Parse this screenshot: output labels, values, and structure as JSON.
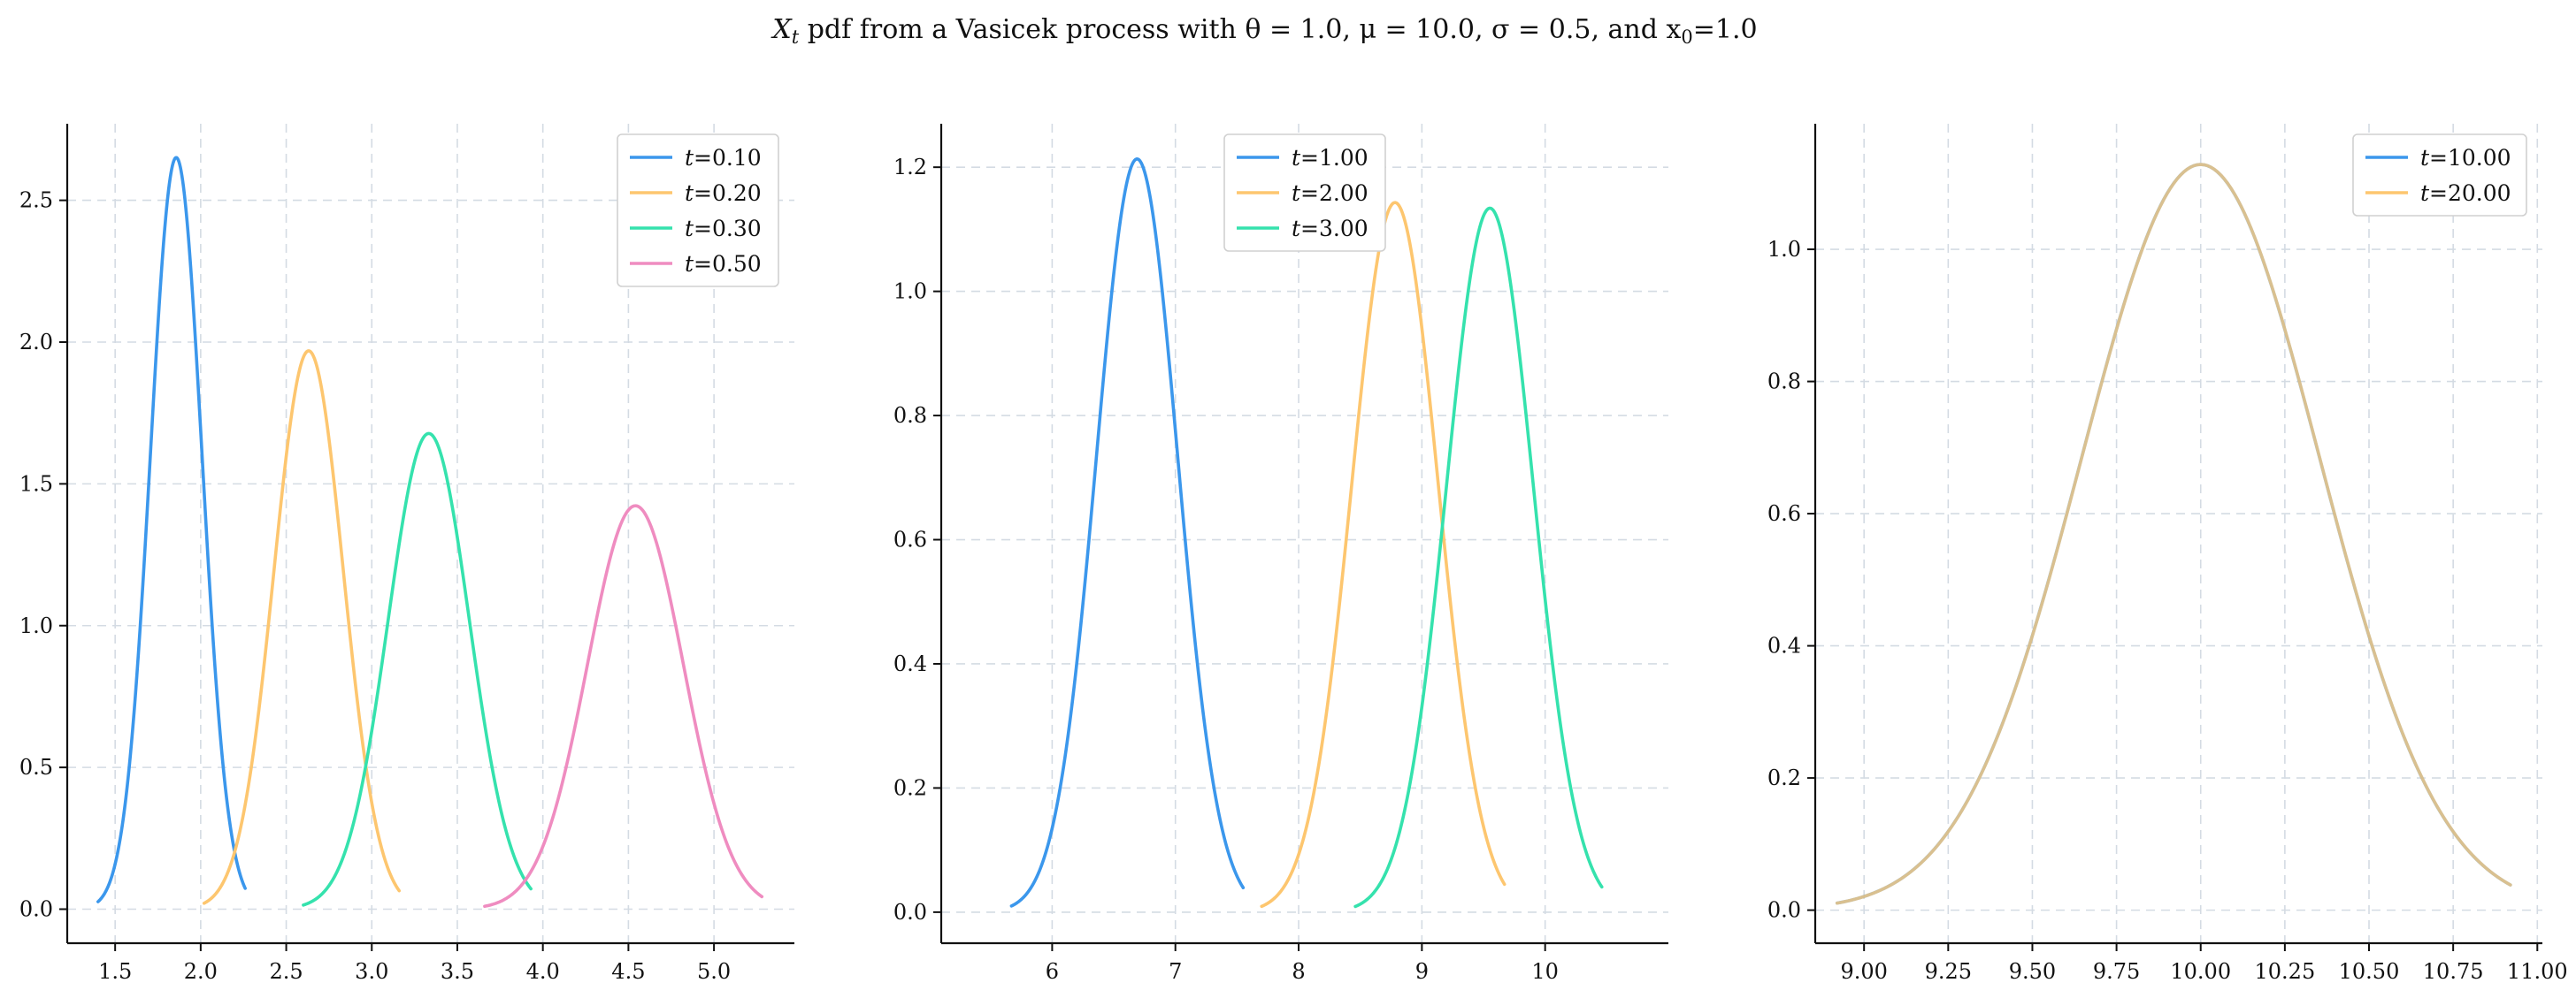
{
  "figure": {
    "title_parts": [
      "X",
      "t",
      " pdf from a Vasicek process with θ = 1.0, μ = 10.0, σ = 0.5, and x",
      "0",
      "=1.0"
    ]
  },
  "chart_data": [
    {
      "type": "line",
      "xlim": [
        1.22,
        5.47
      ],
      "ylim": [
        -0.12,
        2.77
      ],
      "xticks": [
        1.5,
        2.0,
        2.5,
        3.0,
        3.5,
        4.0,
        4.5,
        5.0
      ],
      "xtick_labels": [
        "1.5",
        "2.0",
        "2.5",
        "3.0",
        "3.5",
        "4.0",
        "4.5",
        "5.0"
      ],
      "yticks": [
        0.0,
        0.5,
        1.0,
        1.5,
        2.0,
        2.5
      ],
      "ytick_labels": [
        "0.0",
        "0.5",
        "1.0",
        "1.5",
        "2.0",
        "2.5"
      ],
      "grid": true,
      "legend_position": "top-right",
      "series": [
        {
          "label": "=0.10",
          "color": "#3b97ec",
          "mean": 1.857,
          "sd": 0.1505,
          "x_range": [
            1.4,
            2.26
          ]
        },
        {
          "label": "=0.20",
          "color": "#fdc66f",
          "mean": 2.631,
          "sd": 0.2026,
          "x_range": [
            2.02,
            3.16
          ]
        },
        {
          "label": "=0.30",
          "color": "#35e2ad",
          "mean": 3.333,
          "sd": 0.2378,
          "x_range": [
            2.6,
            3.93
          ]
        },
        {
          "label": "=0.50",
          "color": "#ef8cc0",
          "mean": 4.541,
          "sd": 0.2804,
          "x_range": [
            3.66,
            5.28
          ]
        }
      ]
    },
    {
      "type": "line",
      "xlim": [
        5.1,
        11.0
      ],
      "ylim": [
        -0.05,
        1.27
      ],
      "xticks": [
        6,
        7,
        8,
        9,
        10
      ],
      "xtick_labels": [
        "6",
        "7",
        "8",
        "9",
        "10"
      ],
      "yticks": [
        0.0,
        0.2,
        0.4,
        0.6,
        0.8,
        1.0,
        1.2
      ],
      "ytick_labels": [
        "0.0",
        "0.2",
        "0.4",
        "0.6",
        "0.8",
        "1.0",
        "1.2"
      ],
      "grid": true,
      "legend_position": "top-center",
      "series": [
        {
          "label": "=1.00",
          "color": "#3b97ec",
          "mean": 6.689,
          "sd": 0.3288,
          "x_range": [
            5.67,
            7.55
          ]
        },
        {
          "label": "=2.00",
          "color": "#fdc66f",
          "mean": 8.782,
          "sd": 0.349,
          "x_range": [
            7.7,
            9.67
          ]
        },
        {
          "label": "=3.00",
          "color": "#35e2ad",
          "mean": 9.552,
          "sd": 0.3518,
          "x_range": [
            8.46,
            10.46
          ]
        }
      ]
    },
    {
      "type": "line",
      "xlim": [
        8.855,
        11.015
      ],
      "ylim": [
        -0.05,
        1.19
      ],
      "xticks": [
        9.0,
        9.25,
        9.5,
        9.75,
        10.0,
        10.25,
        10.5,
        10.75,
        11.0
      ],
      "xtick_labels": [
        "9.00",
        "9.25",
        "9.50",
        "9.75",
        "10.00",
        "10.25",
        "10.50",
        "10.75",
        "11.00"
      ],
      "yticks": [
        0.0,
        0.2,
        0.4,
        0.6,
        0.8,
        1.0
      ],
      "ytick_labels": [
        "0.0",
        "0.2",
        "0.4",
        "0.6",
        "0.8",
        "1.0"
      ],
      "grid": true,
      "legend_position": "top-right",
      "series": [
        {
          "label": "=10.00",
          "color": "#3b97ec",
          "mean": 9.99977,
          "sd": 0.35355,
          "x_range": [
            8.92,
            10.92
          ]
        },
        {
          "label": "=20.00",
          "color": "#fdc66f",
          "mean": 10.0,
          "sd": 0.35355,
          "x_range": [
            8.92,
            10.92
          ]
        }
      ],
      "note": "Both curves overlap; rendered color appears as a tan blend."
    }
  ]
}
